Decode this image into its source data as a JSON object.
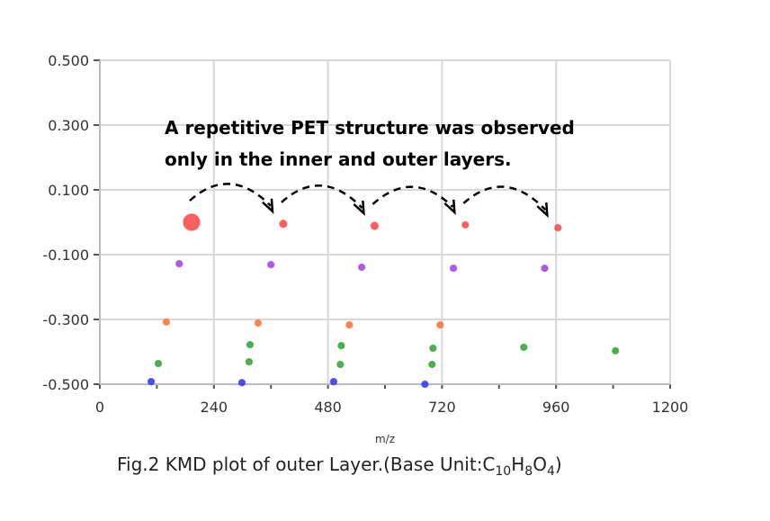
{
  "chart_data": {
    "type": "scatter",
    "title": "",
    "xlabel": "m/z",
    "ylabel": "",
    "xlim": [
      0,
      1200
    ],
    "ylim": [
      -0.5,
      0.5
    ],
    "xticks": [
      "0",
      "240",
      "480",
      "720",
      "960",
      "1200"
    ],
    "yticks": [
      "0.500",
      "0.300",
      "0.100",
      "-0.100",
      "-0.300",
      "-0.500"
    ],
    "grid": true,
    "series": [
      {
        "name": "red",
        "color": "#ff4444",
        "x": [
          193,
          386,
          578,
          769,
          964
        ],
        "y": [
          0.0,
          -0.005,
          -0.011,
          -0.008,
          -0.017
        ],
        "size": [
          9,
          4,
          4,
          3.5,
          3.5
        ]
      },
      {
        "name": "purple",
        "color": "#a040e0",
        "x": [
          167,
          360,
          551,
          744,
          936
        ],
        "y": [
          -0.128,
          -0.131,
          -0.139,
          -0.142,
          -0.142
        ]
      },
      {
        "name": "orange",
        "color": "#ff7030",
        "x": [
          140,
          333,
          525,
          716
        ],
        "y": [
          -0.308,
          -0.311,
          -0.317,
          -0.317
        ]
      },
      {
        "name": "green",
        "color": "#30a030",
        "x": [
          123,
          316,
          314,
          508,
          506,
          701,
          699,
          892,
          1085
        ],
        "y": [
          -0.436,
          -0.378,
          -0.431,
          -0.381,
          -0.439,
          -0.389,
          -0.439,
          -0.386,
          -0.397
        ]
      },
      {
        "name": "blue",
        "color": "#3030ff",
        "x": [
          108,
          299,
          492,
          684
        ],
        "y": [
          -0.492,
          -0.495,
          -0.492,
          -0.5
        ]
      }
    ],
    "annotation": [
      "A repetitive PET structure was observed",
      "only in the inner and outer layers."
    ],
    "caption": {
      "prefix": "Fig.2 KMD plot of  outer Layer.(Base Unit:C",
      "s1": "10",
      "h": "H",
      "s2": "8",
      "o": "O",
      "s3": "4",
      "suffix": ")"
    }
  }
}
